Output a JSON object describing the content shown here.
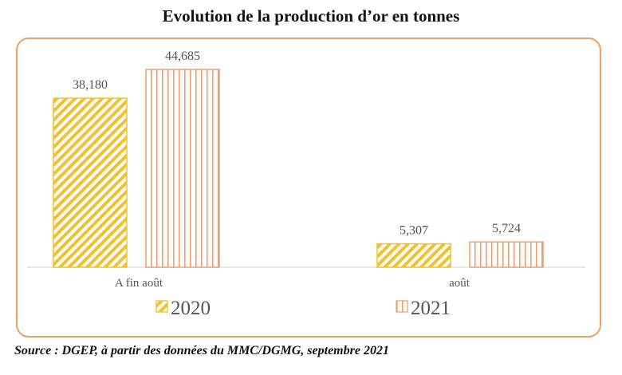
{
  "chart_data": {
    "type": "bar",
    "title": "Evolution de la production d’or en tonnes",
    "categories": [
      "A fin août",
      "août"
    ],
    "series": [
      {
        "name": "2020",
        "values": [
          38.18,
          5.307
        ],
        "labels": [
          "38,180",
          "5,307"
        ],
        "color": "#f2c12e",
        "pattern": "diagonal-hatch"
      },
      {
        "name": "2021",
        "values": [
          44.685,
          5.724
        ],
        "labels": [
          "44,685",
          "5,724"
        ],
        "color": "#f0a070",
        "pattern": "vertical-stripes"
      }
    ],
    "ylim": [
      0,
      50
    ],
    "grid": false,
    "legend": "bottom",
    "source": "Source : DGEP, à partir des données du MMC/DGMG, septembre 2021"
  }
}
